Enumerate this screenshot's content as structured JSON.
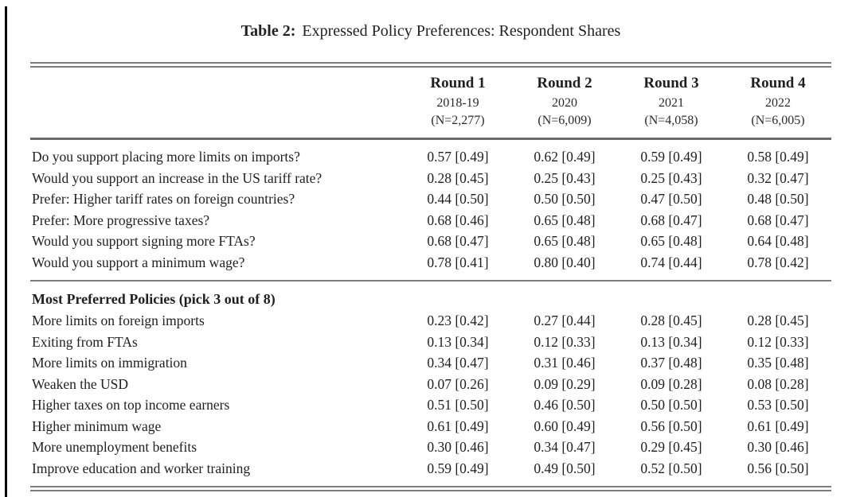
{
  "page": {
    "background_color": "#ffffff",
    "text_color": "#1f1f1f",
    "rule_color": "#7d7d7d"
  },
  "title": {
    "prefix": "Table 2:",
    "text": "Expressed Policy Preferences: Respondent Shares"
  },
  "header": {
    "columns": [
      {
        "round": "Round 1",
        "period": "2018-19",
        "sample": "(N=2,277)"
      },
      {
        "round": "Round 2",
        "period": "2020",
        "sample": "(N=6,009)"
      },
      {
        "round": "Round 3",
        "period": "2021",
        "sample": "(N=4,058)"
      },
      {
        "round": "Round 4",
        "period": "2022",
        "sample": "(N=6,005)"
      }
    ]
  },
  "sections": [
    {
      "header": "",
      "rows": [
        {
          "label": "Do you support placing more limits on imports?",
          "values": [
            "0.57 [0.49]",
            "0.62 [0.49]",
            "0.59 [0.49]",
            "0.58 [0.49]"
          ]
        },
        {
          "label": "Would you support an increase in the US tariff rate?",
          "values": [
            "0.28 [0.45]",
            "0.25 [0.43]",
            "0.25 [0.43]",
            "0.32 [0.47]"
          ]
        },
        {
          "label": "Prefer: Higher tariff rates on foreign countries?",
          "values": [
            "0.44 [0.50]",
            "0.50 [0.50]",
            "0.47 [0.50]",
            "0.48 [0.50]"
          ]
        },
        {
          "label": "Prefer: More progressive taxes?",
          "values": [
            "0.68 [0.46]",
            "0.65 [0.48]",
            "0.68 [0.47]",
            "0.68 [0.47]"
          ]
        },
        {
          "label": "Would you support signing more FTAs?",
          "values": [
            "0.68 [0.47]",
            "0.65 [0.48]",
            "0.65 [0.48]",
            "0.64 [0.48]"
          ]
        },
        {
          "label": "Would you support a minimum wage?",
          "values": [
            "0.78 [0.41]",
            "0.80 [0.40]",
            "0.74 [0.44]",
            "0.78 [0.42]"
          ]
        }
      ]
    },
    {
      "header": "Most Preferred Policies (pick 3 out of 8)",
      "rows": [
        {
          "label": "More limits on foreign imports",
          "values": [
            "0.23 [0.42]",
            "0.27 [0.44]",
            "0.28 [0.45]",
            "0.28 [0.45]"
          ]
        },
        {
          "label": "Exiting from FTAs",
          "values": [
            "0.13 [0.34]",
            "0.12 [0.33]",
            "0.13 [0.34]",
            "0.12 [0.33]"
          ]
        },
        {
          "label": "More limits on immigration",
          "values": [
            "0.34 [0.47]",
            "0.31 [0.46]",
            "0.37 [0.48]",
            "0.35 [0.48]"
          ]
        },
        {
          "label": "Weaken the USD",
          "values": [
            "0.07 [0.26]",
            "0.09 [0.29]",
            "0.09 [0.28]",
            "0.08 [0.28]"
          ]
        },
        {
          "label": "Higher taxes on top income earners",
          "values": [
            "0.51 [0.50]",
            "0.46 [0.50]",
            "0.50 [0.50]",
            "0.53 [0.50]"
          ]
        },
        {
          "label": "Higher minimum wage",
          "values": [
            "0.61 [0.49]",
            "0.60 [0.49]",
            "0.56 [0.50]",
            "0.61 [0.49]"
          ]
        },
        {
          "label": "More unemployment benefits",
          "values": [
            "0.30 [0.46]",
            "0.34 [0.47]",
            "0.29 [0.45]",
            "0.30 [0.46]"
          ]
        },
        {
          "label": "Improve education and worker training",
          "values": [
            "0.59 [0.49]",
            "0.49 [0.50]",
            "0.52 [0.50]",
            "0.56 [0.50]"
          ]
        }
      ]
    }
  ]
}
